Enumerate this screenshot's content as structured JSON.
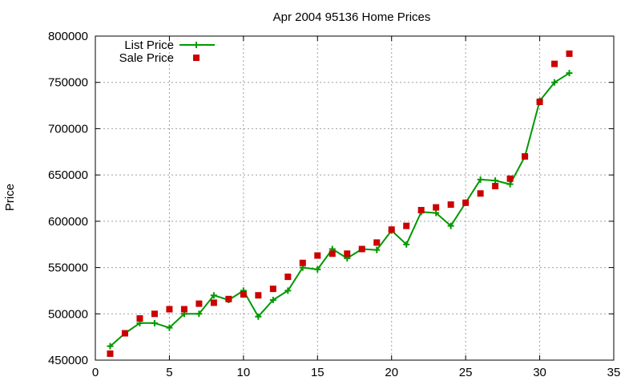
{
  "chart_data": {
    "type": "line",
    "title": "Apr 2004 95136 Home Prices",
    "xlabel": "",
    "ylabel": "Price",
    "xlim": [
      0,
      35
    ],
    "ylim": [
      450000,
      800000
    ],
    "xticks": [
      "0",
      "5",
      "10",
      "15",
      "20",
      "25",
      "30",
      "35"
    ],
    "yticks": [
      "450000",
      "500000",
      "550000",
      "600000",
      "650000",
      "700000",
      "750000",
      "800000"
    ],
    "grid": true,
    "legend_position": "top-left",
    "series": [
      {
        "name": "List Price",
        "kind": "line-with-plus-markers",
        "color": "#009900",
        "x": [
          1,
          2,
          3,
          4,
          5,
          6,
          7,
          8,
          9,
          10,
          11,
          12,
          13,
          14,
          15,
          16,
          17,
          18,
          19,
          20,
          21,
          22,
          23,
          24,
          25,
          26,
          27,
          28,
          29,
          30,
          31,
          32
        ],
        "y": [
          465000,
          479000,
          490000,
          490000,
          485000,
          500000,
          500000,
          520000,
          515000,
          525000,
          497000,
          515000,
          525000,
          550000,
          548000,
          570000,
          560000,
          570000,
          569000,
          590000,
          575000,
          610000,
          609000,
          595000,
          620000,
          645000,
          644000,
          640000,
          670000,
          730000,
          750000,
          760000
        ]
      },
      {
        "name": "Sale Price",
        "kind": "square-markers",
        "color": "#cc0000",
        "x": [
          1,
          2,
          3,
          4,
          5,
          6,
          7,
          8,
          9,
          10,
          11,
          12,
          13,
          14,
          15,
          16,
          17,
          18,
          19,
          20,
          21,
          22,
          23,
          24,
          25,
          26,
          27,
          28,
          29,
          30,
          31,
          32
        ],
        "y": [
          457000,
          479000,
          495000,
          500000,
          505000,
          505000,
          511000,
          512000,
          516000,
          521000,
          520000,
          527000,
          540000,
          555000,
          563000,
          565000,
          565000,
          570000,
          577000,
          591000,
          595000,
          612000,
          615000,
          618000,
          620000,
          630000,
          638000,
          646000,
          670000,
          729000,
          770000,
          781000
        ]
      }
    ]
  }
}
